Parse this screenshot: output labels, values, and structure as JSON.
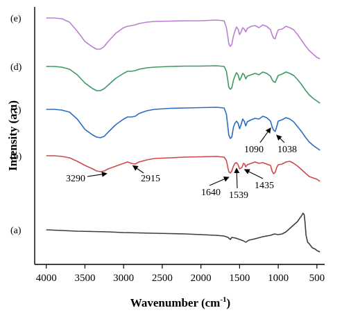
{
  "chart_data": {
    "type": "line",
    "xlabel": "Wavenumber (cm",
    "xlabel_sup": "-1",
    "xlabel_end": ")",
    "ylabel": "Intensity (a.u)",
    "xlim": [
      4150,
      400
    ],
    "x_ticks": [
      4000,
      3500,
      3000,
      2500,
      2000,
      1500,
      1000,
      500
    ],
    "grid": false,
    "y_ticks_shown": false,
    "series": [
      {
        "name": "(a)",
        "color": "#3d3d3d",
        "points": [
          [
            4000,
            332
          ],
          [
            3800,
            333
          ],
          [
            3600,
            334
          ],
          [
            3400,
            334.5
          ],
          [
            3200,
            335
          ],
          [
            3000,
            336
          ],
          [
            2800,
            336.5
          ],
          [
            2600,
            337
          ],
          [
            2400,
            337.5
          ],
          [
            2200,
            338
          ],
          [
            2000,
            339
          ],
          [
            1800,
            340
          ],
          [
            1700,
            341
          ],
          [
            1650,
            343
          ],
          [
            1620,
            346
          ],
          [
            1600,
            343
          ],
          [
            1550,
            344
          ],
          [
            1500,
            346
          ],
          [
            1450,
            348
          ],
          [
            1420,
            350
          ],
          [
            1380,
            347
          ],
          [
            1300,
            345
          ],
          [
            1200,
            342
          ],
          [
            1100,
            340
          ],
          [
            1050,
            338
          ],
          [
            1000,
            339
          ],
          [
            950,
            338
          ],
          [
            900,
            335
          ],
          [
            850,
            330
          ],
          [
            800,
            325
          ],
          [
            750,
            320
          ],
          [
            720,
            315
          ],
          [
            700,
            312
          ],
          [
            680,
            308
          ],
          [
            665,
            310
          ],
          [
            655,
            320
          ],
          [
            640,
            340
          ],
          [
            620,
            350
          ],
          [
            600,
            352
          ],
          [
            580,
            355
          ],
          [
            560,
            358
          ],
          [
            540,
            359
          ],
          [
            520,
            360
          ],
          [
            500,
            362
          ],
          [
            480,
            363
          ],
          [
            460,
            364
          ]
        ]
      },
      {
        "name": "(b)",
        "color": "#d04848",
        "points": [
          [
            4000,
            225
          ],
          [
            3900,
            225
          ],
          [
            3800,
            226
          ],
          [
            3700,
            228
          ],
          [
            3600,
            233
          ],
          [
            3500,
            239
          ],
          [
            3400,
            244
          ],
          [
            3350,
            247
          ],
          [
            3300,
            248
          ],
          [
            3250,
            247
          ],
          [
            3200,
            244
          ],
          [
            3100,
            240
          ],
          [
            3000,
            236
          ],
          [
            2950,
            234
          ],
          [
            2900,
            236
          ],
          [
            2850,
            237
          ],
          [
            2800,
            234
          ],
          [
            2700,
            231
          ],
          [
            2600,
            229
          ],
          [
            2400,
            228
          ],
          [
            2200,
            227
          ],
          [
            2000,
            226.5
          ],
          [
            1800,
            226
          ],
          [
            1700,
            227
          ],
          [
            1670,
            232
          ],
          [
            1650,
            243
          ],
          [
            1640,
            248
          ],
          [
            1620,
            250
          ],
          [
            1600,
            247
          ],
          [
            1580,
            240
          ],
          [
            1560,
            236
          ],
          [
            1540,
            235
          ],
          [
            1520,
            238
          ],
          [
            1500,
            244
          ],
          [
            1470,
            242
          ],
          [
            1450,
            236
          ],
          [
            1435,
            237
          ],
          [
            1420,
            241
          ],
          [
            1400,
            238
          ],
          [
            1350,
            236
          ],
          [
            1300,
            234
          ],
          [
            1250,
            236
          ],
          [
            1200,
            235
          ],
          [
            1150,
            237
          ],
          [
            1100,
            239
          ],
          [
            1080,
            247
          ],
          [
            1060,
            251
          ],
          [
            1040,
            249
          ],
          [
            1020,
            242
          ],
          [
            1000,
            238
          ],
          [
            950,
            237
          ],
          [
            900,
            234
          ],
          [
            850,
            233
          ],
          [
            800,
            236
          ],
          [
            750,
            240
          ],
          [
            700,
            245
          ],
          [
            650,
            250
          ],
          [
            600,
            255
          ],
          [
            550,
            257
          ],
          [
            500,
            259
          ],
          [
            460,
            262
          ]
        ]
      },
      {
        "name": "(c)",
        "color": "#2a6bc8",
        "points": [
          [
            4000,
            158
          ],
          [
            3900,
            158
          ],
          [
            3800,
            159
          ],
          [
            3700,
            162
          ],
          [
            3600,
            172
          ],
          [
            3500,
            187
          ],
          [
            3400,
            195
          ],
          [
            3350,
            198
          ],
          [
            3300,
            199
          ],
          [
            3250,
            197
          ],
          [
            3200,
            191
          ],
          [
            3100,
            180
          ],
          [
            3000,
            172
          ],
          [
            2950,
            169
          ],
          [
            2900,
            169
          ],
          [
            2850,
            168
          ],
          [
            2800,
            164
          ],
          [
            2700,
            160
          ],
          [
            2600,
            158
          ],
          [
            2400,
            156.5
          ],
          [
            2200,
            156
          ],
          [
            2000,
            155.5
          ],
          [
            1800,
            155
          ],
          [
            1700,
            156
          ],
          [
            1670,
            165
          ],
          [
            1650,
            185
          ],
          [
            1640,
            195
          ],
          [
            1620,
            200
          ],
          [
            1600,
            198
          ],
          [
            1580,
            184
          ],
          [
            1560,
            178
          ],
          [
            1540,
            175
          ],
          [
            1520,
            178
          ],
          [
            1500,
            186
          ],
          [
            1480,
            180
          ],
          [
            1460,
            172
          ],
          [
            1440,
            175
          ],
          [
            1420,
            182
          ],
          [
            1400,
            176
          ],
          [
            1350,
            173
          ],
          [
            1300,
            171
          ],
          [
            1250,
            172
          ],
          [
            1200,
            168
          ],
          [
            1150,
            170
          ],
          [
            1100,
            175
          ],
          [
            1080,
            183
          ],
          [
            1060,
            188
          ],
          [
            1040,
            190
          ],
          [
            1020,
            183
          ],
          [
            1000,
            175
          ],
          [
            950,
            173
          ],
          [
            900,
            170
          ],
          [
            850,
            172
          ],
          [
            800,
            176
          ],
          [
            750,
            183
          ],
          [
            700,
            190
          ],
          [
            650,
            198
          ],
          [
            600,
            205
          ],
          [
            550,
            210
          ],
          [
            500,
            214
          ],
          [
            460,
            217
          ]
        ]
      },
      {
        "name": "(d)",
        "color": "#3a9a62",
        "points": [
          [
            4000,
            96
          ],
          [
            3900,
            96
          ],
          [
            3800,
            97
          ],
          [
            3700,
            100
          ],
          [
            3600,
            108
          ],
          [
            3500,
            120
          ],
          [
            3400,
            128
          ],
          [
            3350,
            131
          ],
          [
            3300,
            131
          ],
          [
            3250,
            128
          ],
          [
            3200,
            123
          ],
          [
            3100,
            113
          ],
          [
            3000,
            106
          ],
          [
            2950,
            103
          ],
          [
            2900,
            103
          ],
          [
            2850,
            102
          ],
          [
            2800,
            100
          ],
          [
            2700,
            98
          ],
          [
            2600,
            97
          ],
          [
            2400,
            96
          ],
          [
            2200,
            95.5
          ],
          [
            2000,
            95.5
          ],
          [
            1800,
            95
          ],
          [
            1700,
            96
          ],
          [
            1670,
            103
          ],
          [
            1650,
            118
          ],
          [
            1640,
            126
          ],
          [
            1620,
            129
          ],
          [
            1600,
            127
          ],
          [
            1580,
            116
          ],
          [
            1560,
            110
          ],
          [
            1540,
            105
          ],
          [
            1520,
            108
          ],
          [
            1500,
            116
          ],
          [
            1480,
            112
          ],
          [
            1460,
            106
          ],
          [
            1440,
            108
          ],
          [
            1420,
            114
          ],
          [
            1400,
            110
          ],
          [
            1350,
            108
          ],
          [
            1300,
            106
          ],
          [
            1250,
            108
          ],
          [
            1200,
            104
          ],
          [
            1150,
            106
          ],
          [
            1100,
            110
          ],
          [
            1080,
            115
          ],
          [
            1060,
            118
          ],
          [
            1040,
            119
          ],
          [
            1020,
            114
          ],
          [
            1000,
            109
          ],
          [
            950,
            107
          ],
          [
            900,
            104
          ],
          [
            850,
            106
          ],
          [
            800,
            109
          ],
          [
            750,
            115
          ],
          [
            700,
            122
          ],
          [
            650,
            130
          ],
          [
            600,
            137
          ],
          [
            550,
            142
          ],
          [
            500,
            146
          ],
          [
            460,
            149
          ]
        ]
      },
      {
        "name": "(e)",
        "color": "#b880cf",
        "points": [
          [
            4000,
            26
          ],
          [
            3900,
            26
          ],
          [
            3800,
            27
          ],
          [
            3700,
            32
          ],
          [
            3600,
            45
          ],
          [
            3500,
            60
          ],
          [
            3400,
            68
          ],
          [
            3350,
            71
          ],
          [
            3300,
            71
          ],
          [
            3250,
            67
          ],
          [
            3200,
            60
          ],
          [
            3100,
            48
          ],
          [
            3000,
            40
          ],
          [
            2950,
            38
          ],
          [
            2900,
            37
          ],
          [
            2850,
            36
          ],
          [
            2800,
            34
          ],
          [
            2700,
            32
          ],
          [
            2600,
            31
          ],
          [
            2400,
            30.5
          ],
          [
            2200,
            30
          ],
          [
            2000,
            30
          ],
          [
            1800,
            29
          ],
          [
            1700,
            30
          ],
          [
            1670,
            40
          ],
          [
            1650,
            55
          ],
          [
            1640,
            63
          ],
          [
            1620,
            67
          ],
          [
            1600,
            64
          ],
          [
            1580,
            52
          ],
          [
            1560,
            45
          ],
          [
            1540,
            39
          ],
          [
            1520,
            42
          ],
          [
            1500,
            50
          ],
          [
            1480,
            46
          ],
          [
            1460,
            40
          ],
          [
            1440,
            42
          ],
          [
            1420,
            46
          ],
          [
            1400,
            41
          ],
          [
            1350,
            38
          ],
          [
            1300,
            37
          ],
          [
            1250,
            40
          ],
          [
            1200,
            36
          ],
          [
            1150,
            38
          ],
          [
            1100,
            43
          ],
          [
            1080,
            50
          ],
          [
            1060,
            55
          ],
          [
            1040,
            56
          ],
          [
            1020,
            49
          ],
          [
            1000,
            43
          ],
          [
            950,
            42
          ],
          [
            900,
            38
          ],
          [
            850,
            40
          ],
          [
            800,
            43
          ],
          [
            750,
            50
          ],
          [
            700,
            58
          ],
          [
            650,
            66
          ],
          [
            600,
            73
          ],
          [
            550,
            78
          ],
          [
            500,
            83
          ],
          [
            460,
            85
          ]
        ]
      }
    ],
    "annotations": [
      {
        "text": "3290",
        "x": 3290,
        "series": "(b)"
      },
      {
        "text": "2915",
        "x": 2915,
        "series": "(b)"
      },
      {
        "text": "1640",
        "x": 1640,
        "series": "(b)"
      },
      {
        "text": "1539",
        "x": 1539,
        "series": "(b)"
      },
      {
        "text": "1435",
        "x": 1435,
        "series": "(b)"
      },
      {
        "text": "1090",
        "x": 1090,
        "series": "(c)"
      },
      {
        "text": "1038",
        "x": 1038,
        "series": "(c)"
      }
    ]
  }
}
